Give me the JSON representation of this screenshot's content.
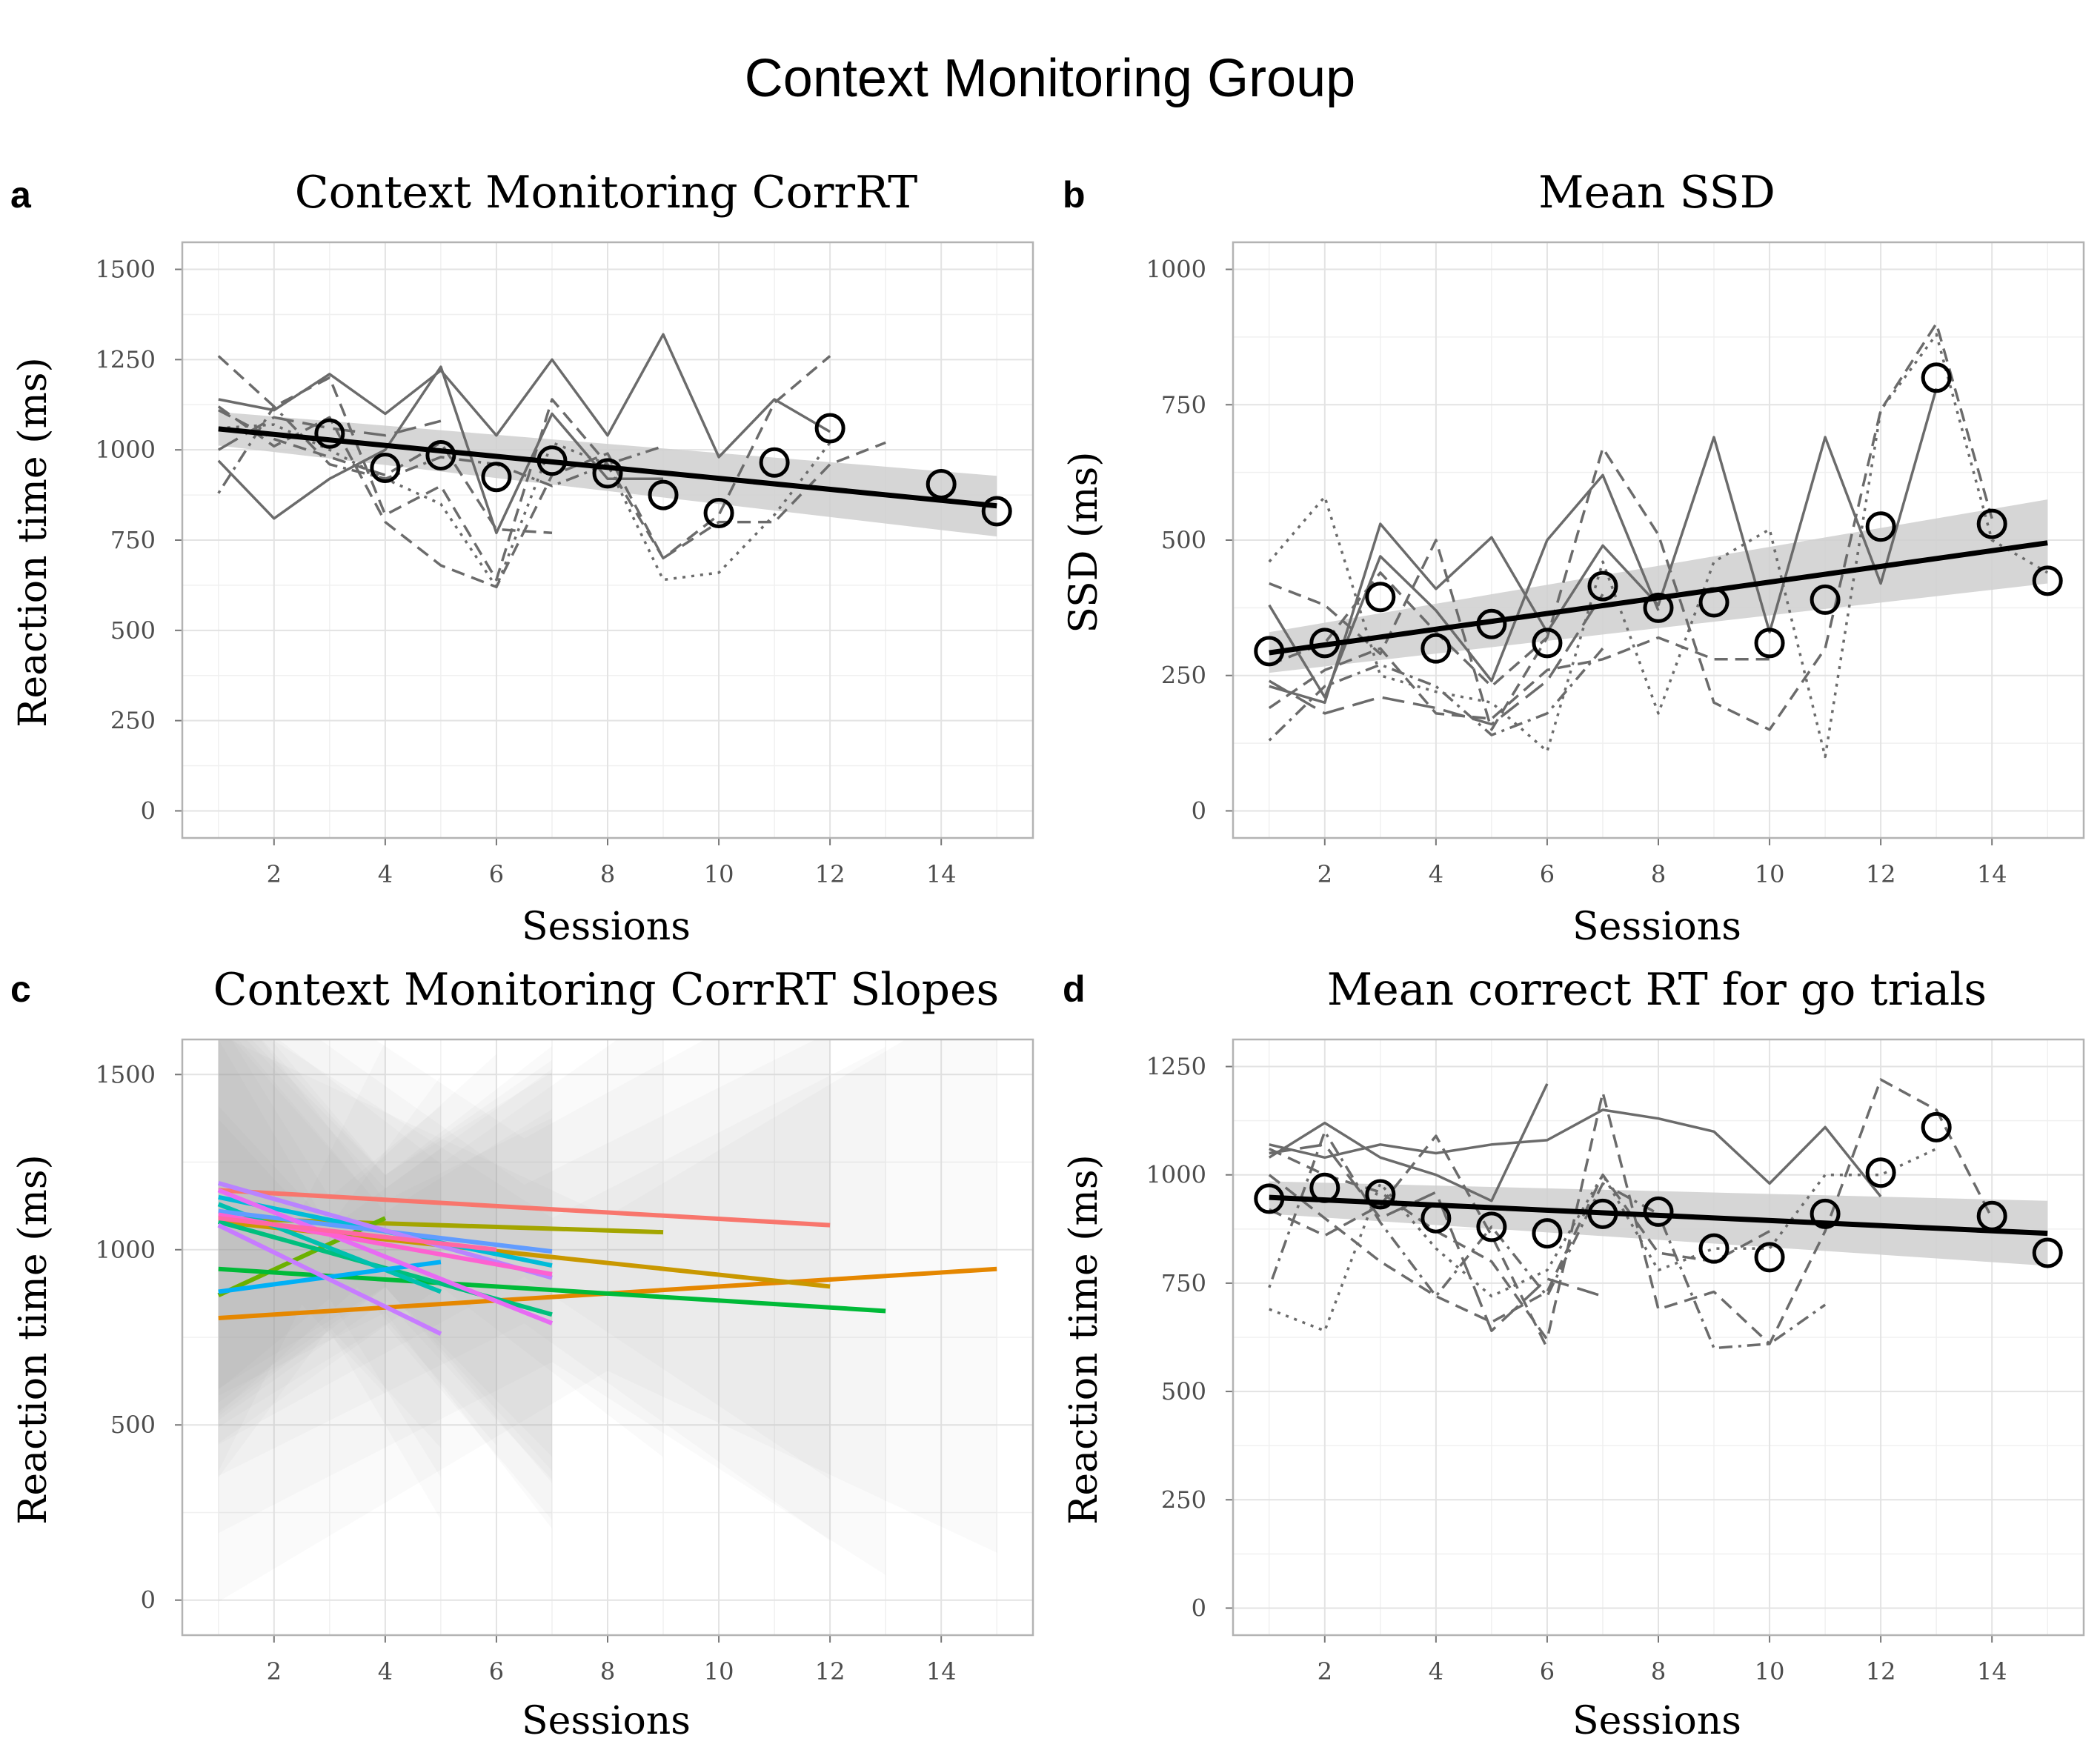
{
  "figure": {
    "title": "Context Monitoring Group"
  },
  "chart_data": [
    {
      "id": "a",
      "letter": "a",
      "type": "line",
      "title": "Context Monitoring CorrRT",
      "xlabel": "Sessions",
      "ylabel": "Reaction time (ms)",
      "xlim": [
        0.35,
        15.65
      ],
      "ylim": [
        -75,
        1575
      ],
      "x_ticks": [
        2,
        4,
        6,
        8,
        10,
        12,
        14
      ],
      "y_ticks": [
        0,
        250,
        500,
        750,
        1000,
        1250,
        1500
      ],
      "grid": true,
      "mean_points": {
        "x": [
          3,
          4,
          5,
          6,
          7,
          8,
          9,
          10,
          11,
          12,
          14,
          15
        ],
        "y": [
          1045,
          950,
          985,
          925,
          970,
          935,
          875,
          825,
          965,
          1060,
          905,
          830
        ]
      },
      "trend": {
        "x": [
          1,
          15
        ],
        "y": [
          1058,
          845
        ]
      },
      "ci_band": {
        "x": [
          1,
          15
        ],
        "lower": [
          1012,
          760
        ],
        "upper": [
          1105,
          928
        ]
      },
      "individual_series": [
        {
          "style": "solid",
          "x": [
            1,
            2,
            3,
            4,
            5,
            6,
            7,
            8,
            9,
            10,
            11,
            12
          ],
          "y": [
            1140,
            1110,
            1210,
            1100,
            1220,
            1040,
            1250,
            1040,
            1320,
            980,
            1140,
            1050
          ]
        },
        {
          "style": "solid",
          "x": [
            1,
            2,
            3,
            4,
            5,
            6,
            7,
            8,
            9
          ],
          "y": [
            970,
            810,
            920,
            1000,
            1230,
            770,
            1100,
            920,
            920
          ]
        },
        {
          "style": "dashed",
          "x": [
            1,
            2,
            3,
            4,
            5,
            6,
            7,
            8,
            9,
            10,
            11,
            12
          ],
          "y": [
            1260,
            1120,
            1200,
            820,
            900,
            640,
            1140,
            960,
            700,
            820,
            1130,
            1260
          ]
        },
        {
          "style": "dashed",
          "x": [
            1,
            2,
            3,
            4,
            5,
            6,
            7
          ],
          "y": [
            1110,
            1030,
            980,
            930,
            1020,
            780,
            770
          ]
        },
        {
          "style": "dotted",
          "x": [
            1,
            2,
            3,
            4,
            5,
            6,
            7,
            8,
            9,
            10,
            11,
            12
          ],
          "y": [
            1060,
            1070,
            1000,
            920,
            850,
            620,
            1020,
            960,
            640,
            660,
            820,
            1020
          ]
        },
        {
          "style": "dashed",
          "x": [
            1,
            2,
            3,
            4,
            5,
            6,
            7,
            8,
            9,
            10,
            11,
            12,
            13
          ],
          "y": [
            1120,
            1010,
            1090,
            800,
            680,
            620,
            930,
            990,
            700,
            800,
            800,
            960,
            1020
          ]
        },
        {
          "style": "dotdash",
          "x": [
            1,
            2,
            3,
            4,
            5,
            6,
            7,
            8,
            9
          ],
          "y": [
            880,
            1120,
            960,
            920,
            980,
            960,
            900,
            960,
            1010
          ]
        },
        {
          "style": "longdash",
          "x": [
            1,
            2,
            3,
            4,
            5
          ],
          "y": [
            1000,
            1090,
            1060,
            1040,
            1080
          ]
        }
      ]
    },
    {
      "id": "b",
      "letter": "b",
      "type": "line",
      "title": "Mean SSD",
      "xlabel": "Sessions",
      "ylabel": "SSD (ms)",
      "xlim": [
        0.35,
        15.65
      ],
      "ylim": [
        -50,
        1050
      ],
      "x_ticks": [
        2,
        4,
        6,
        8,
        10,
        12,
        14
      ],
      "y_ticks": [
        0,
        250,
        500,
        750,
        1000
      ],
      "grid": true,
      "mean_points": {
        "x": [
          1,
          2,
          3,
          4,
          5,
          6,
          7,
          8,
          9,
          10,
          11,
          12,
          13,
          14,
          15
        ],
        "y": [
          295,
          310,
          395,
          300,
          345,
          310,
          415,
          375,
          385,
          310,
          390,
          525,
          800,
          530,
          425
        ]
      },
      "trend": {
        "x": [
          1,
          15
        ],
        "y": [
          292,
          495
        ]
      },
      "ci_band": {
        "x": [
          1,
          15
        ],
        "lower": [
          255,
          420
        ],
        "upper": [
          330,
          575
        ]
      },
      "individual_series": [
        {
          "style": "solid",
          "x": [
            1,
            2,
            3,
            4,
            5,
            6,
            7,
            8,
            9,
            10,
            11,
            12,
            13
          ],
          "y": [
            230,
            200,
            530,
            410,
            505,
            330,
            490,
            380,
            690,
            330,
            690,
            420,
            780
          ]
        },
        {
          "style": "solid",
          "x": [
            1,
            2,
            3,
            4,
            5,
            6,
            7,
            8
          ],
          "y": [
            380,
            210,
            470,
            370,
            240,
            500,
            620,
            370
          ]
        },
        {
          "style": "dashed",
          "x": [
            1,
            2,
            3,
            4,
            5,
            6,
            7,
            8,
            9,
            10,
            11,
            12,
            13,
            14
          ],
          "y": [
            420,
            380,
            290,
            500,
            150,
            320,
            670,
            510,
            200,
            150,
            300,
            740,
            900,
            540
          ]
        },
        {
          "style": "dotted",
          "x": [
            1,
            2,
            3,
            4,
            5,
            6,
            7,
            8,
            9,
            10,
            11,
            12,
            13,
            14,
            15
          ],
          "y": [
            460,
            580,
            250,
            220,
            200,
            110,
            460,
            180,
            460,
            520,
            100,
            740,
            880,
            500,
            440
          ]
        },
        {
          "style": "dashed",
          "x": [
            1,
            2,
            3,
            4,
            5,
            6,
            7,
            8,
            9,
            10
          ],
          "y": [
            190,
            260,
            300,
            180,
            170,
            260,
            280,
            320,
            280,
            280
          ]
        },
        {
          "style": "dotdash",
          "x": [
            1,
            2,
            3,
            4,
            5,
            6,
            7
          ],
          "y": [
            130,
            230,
            270,
            230,
            140,
            180,
            300
          ]
        },
        {
          "style": "longdash",
          "x": [
            1,
            2,
            3,
            4,
            5,
            6,
            7
          ],
          "y": [
            240,
            180,
            210,
            190,
            160,
            240,
            400
          ]
        },
        {
          "style": "dashed",
          "x": [
            1,
            2,
            3,
            4,
            5,
            6
          ],
          "y": [
            270,
            310,
            440,
            330,
            230,
            320
          ]
        }
      ]
    },
    {
      "id": "c",
      "letter": "c",
      "type": "line",
      "title": "Context Monitoring CorrRT Slopes",
      "xlabel": "Sessions",
      "ylabel": "Reaction time (ms)",
      "xlim": [
        0.35,
        15.65
      ],
      "ylim": [
        -100,
        1600
      ],
      "x_ticks": [
        2,
        4,
        6,
        8,
        10,
        12,
        14
      ],
      "y_ticks": [
        0,
        500,
        1000,
        1500
      ],
      "grid": true,
      "slope_lines": [
        {
          "color": "#F8766D",
          "x": [
            1,
            12
          ],
          "y": [
            1170,
            1070
          ]
        },
        {
          "color": "#E58700",
          "x": [
            1,
            15
          ],
          "y": [
            805,
            945
          ]
        },
        {
          "color": "#C99800",
          "x": [
            1,
            12
          ],
          "y": [
            1080,
            895
          ]
        },
        {
          "color": "#A3A500",
          "x": [
            1,
            9
          ],
          "y": [
            1090,
            1050
          ]
        },
        {
          "color": "#6BB100",
          "x": [
            1,
            4
          ],
          "y": [
            870,
            1090
          ]
        },
        {
          "color": "#00BA38",
          "x": [
            1,
            13
          ],
          "y": [
            945,
            825
          ]
        },
        {
          "color": "#00BF7D",
          "x": [
            1,
            7
          ],
          "y": [
            1080,
            815
          ]
        },
        {
          "color": "#00C0AF",
          "x": [
            1,
            5
          ],
          "y": [
            1130,
            880
          ]
        },
        {
          "color": "#00BCD8",
          "x": [
            1,
            7
          ],
          "y": [
            1150,
            955
          ]
        },
        {
          "color": "#00B0F6",
          "x": [
            1,
            5
          ],
          "y": [
            880,
            965
          ]
        },
        {
          "color": "#619CFF",
          "x": [
            1,
            7
          ],
          "y": [
            1110,
            995
          ]
        },
        {
          "color": "#B983FF",
          "x": [
            1,
            7
          ],
          "y": [
            1190,
            920
          ]
        },
        {
          "color": "#E76BF3",
          "x": [
            1,
            7
          ],
          "y": [
            1170,
            790
          ]
        },
        {
          "color": "#FD61D1",
          "x": [
            1,
            7
          ],
          "y": [
            1100,
            930
          ]
        },
        {
          "color": "#FF67A4",
          "x": [
            1,
            6
          ],
          "y": [
            1090,
            1000
          ]
        },
        {
          "color": "#C77CFF",
          "x": [
            1,
            5
          ],
          "y": [
            1070,
            760
          ]
        }
      ]
    },
    {
      "id": "d",
      "letter": "d",
      "type": "line",
      "title": "Mean correct RT for go trials",
      "xlabel": "Sessions",
      "ylabel": "Reaction time (ms)",
      "xlim": [
        0.35,
        15.65
      ],
      "ylim": [
        -62.5,
        1312.5
      ],
      "x_ticks": [
        2,
        4,
        6,
        8,
        10,
        12,
        14
      ],
      "y_ticks": [
        0,
        250,
        500,
        750,
        1000,
        1250
      ],
      "grid": true,
      "mean_points": {
        "x": [
          1,
          2,
          3,
          4,
          5,
          6,
          7,
          8,
          9,
          10,
          11,
          12,
          13,
          14,
          15
        ],
        "y": [
          945,
          970,
          955,
          900,
          880,
          865,
          910,
          915,
          830,
          810,
          910,
          1005,
          1110,
          905,
          820
        ]
      },
      "trend": {
        "x": [
          1,
          15
        ],
        "y": [
          948,
          865
        ]
      },
      "ci_band": {
        "x": [
          1,
          15
        ],
        "lower": [
          910,
          790
        ],
        "upper": [
          985,
          940
        ]
      },
      "individual_series": [
        {
          "style": "solid",
          "x": [
            1,
            2,
            3,
            4,
            5,
            6,
            7,
            8,
            9,
            10,
            11,
            12
          ],
          "y": [
            1070,
            1040,
            1070,
            1050,
            1070,
            1080,
            1150,
            1130,
            1100,
            980,
            1110,
            950
          ]
        },
        {
          "style": "solid",
          "x": [
            1,
            2,
            3,
            4,
            5,
            6
          ],
          "y": [
            1040,
            1120,
            1040,
            1000,
            940,
            1210
          ]
        },
        {
          "style": "dashed",
          "x": [
            1,
            2,
            3,
            4,
            5,
            6,
            7,
            8,
            9,
            10,
            11,
            12,
            13,
            14
          ],
          "y": [
            1060,
            1000,
            960,
            870,
            800,
            620,
            1190,
            690,
            730,
            610,
            870,
            1220,
            1150,
            900
          ]
        },
        {
          "style": "dotted",
          "x": [
            1,
            2,
            3,
            4,
            5,
            6,
            7,
            8,
            9,
            10,
            11,
            12,
            13
          ],
          "y": [
            690,
            640,
            980,
            830,
            720,
            780,
            1000,
            780,
            830,
            830,
            1000,
            1000,
            1060
          ]
        },
        {
          "style": "dashed",
          "x": [
            1,
            2,
            3,
            4,
            5,
            6,
            7,
            8,
            9,
            10
          ],
          "y": [
            1000,
            900,
            800,
            720,
            660,
            730,
            1000,
            820,
            800,
            870
          ]
        },
        {
          "style": "dotdash",
          "x": [
            1,
            2,
            3,
            4,
            5,
            6,
            7,
            8,
            9,
            10,
            11
          ],
          "y": [
            740,
            1100,
            890,
            720,
            880,
            720,
            980,
            910,
            600,
            610,
            700
          ]
        },
        {
          "style": "longdash",
          "x": [
            1,
            2,
            3,
            4,
            5,
            6,
            7
          ],
          "y": [
            1050,
            1070,
            900,
            960,
            640,
            760,
            720
          ]
        },
        {
          "style": "dashed",
          "x": [
            1,
            2,
            3,
            4,
            5,
            6
          ],
          "y": [
            920,
            860,
            930,
            1090,
            860,
            600
          ]
        }
      ]
    }
  ]
}
